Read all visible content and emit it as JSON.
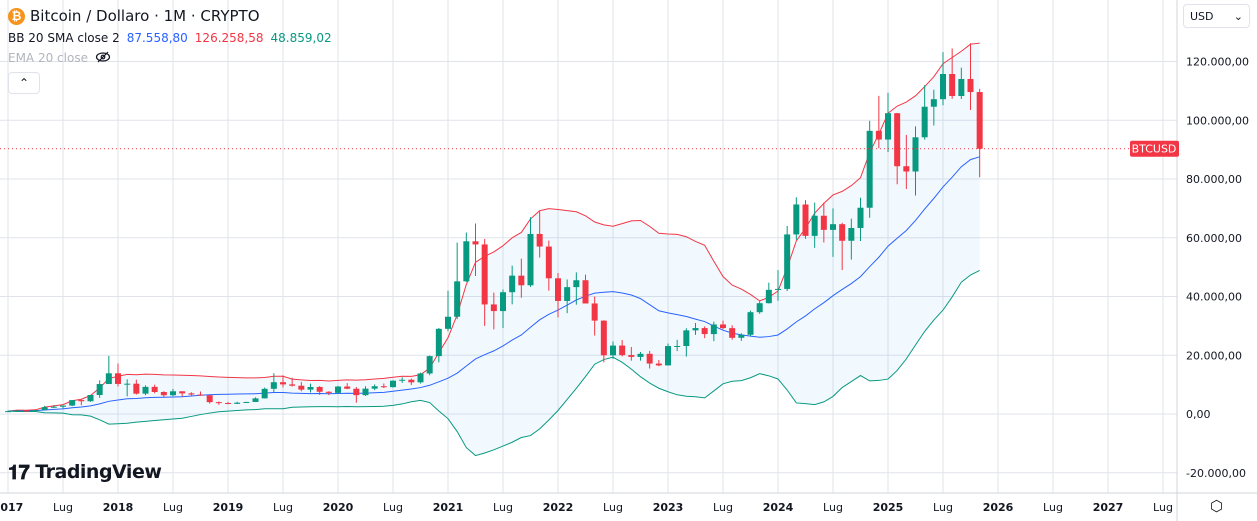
{
  "header": {
    "symbol_title": "Bitcoin / Dollaro · 1M · CRYPTO",
    "coin_icon": "bitcoin-icon",
    "bb_label": "BB 20 SMA close 2",
    "bb_basis": "87.558,80",
    "bb_upper": "126.258,58",
    "bb_lower": "48.859,02",
    "ema_label": "EMA 20 close",
    "ema_hidden_icon": "eye-off-icon",
    "collapse_icon": "chevron-up-icon"
  },
  "currency": {
    "label": "USD",
    "icon": "chevron-down-icon"
  },
  "price_label": "BTCUSD",
  "logo": "TradingView",
  "colors": {
    "up": "#089981",
    "down": "#f23645",
    "basis": "#2962ff",
    "upper": "#f23645",
    "lower": "#089981",
    "band_fill": "#2196f31a"
  },
  "chart_data": {
    "type": "candlestick",
    "interval": "1M",
    "start": "2017-01",
    "y_ticks": [
      "120.000,00",
      "100.000,00",
      "80.000,00",
      "60.000,00",
      "40.000,00",
      "20.000,00",
      "0,00",
      "-20.000,00"
    ],
    "y_tick_values": [
      120000,
      100000,
      80000,
      60000,
      40000,
      20000,
      0,
      -20000
    ],
    "x_ticks": [
      "2017",
      "Lug",
      "2018",
      "Lug",
      "2019",
      "Lug",
      "2020",
      "Lug",
      "2021",
      "Lug",
      "2022",
      "Lug",
      "2023",
      "Lug",
      "2024",
      "Lug",
      "2025",
      "Lug",
      "2026",
      "Lug",
      "2027",
      "Lug"
    ],
    "ylim": [
      -27000,
      141000
    ],
    "grid": true,
    "last_close": 90300,
    "indicator": "Bollinger Bands 20 SMA close 2",
    "ohlc": [
      [
        963,
        1190,
        750,
        970
      ],
      [
        970,
        1200,
        915,
        1190
      ],
      [
        1190,
        1350,
        890,
        1080
      ],
      [
        1080,
        1350,
        1060,
        1350
      ],
      [
        1350,
        2760,
        1350,
        2300
      ],
      [
        2300,
        3000,
        2100,
        2480
      ],
      [
        2480,
        2950,
        1830,
        2870
      ],
      [
        2870,
        4750,
        2670,
        4730
      ],
      [
        4730,
        5000,
        2970,
        4340
      ],
      [
        4340,
        6470,
        4110,
        6470
      ],
      [
        6470,
        11500,
        5500,
        10200
      ],
      [
        10200,
        19800,
        10400,
        13860
      ],
      [
        13860,
        17200,
        9400,
        10230
      ],
      [
        10230,
        11800,
        6000,
        10320
      ],
      [
        10320,
        11700,
        6600,
        6930
      ],
      [
        6930,
        9750,
        6430,
        9240
      ],
      [
        9240,
        9990,
        7050,
        7490
      ],
      [
        7490,
        7760,
        5760,
        6390
      ],
      [
        6390,
        8500,
        6070,
        7730
      ],
      [
        7730,
        7760,
        5880,
        7030
      ],
      [
        7030,
        7410,
        6100,
        6630
      ],
      [
        6630,
        7680,
        6200,
        6370
      ],
      [
        6370,
        6580,
        3560,
        4040
      ],
      [
        4040,
        4250,
        3130,
        3740
      ],
      [
        3740,
        4110,
        3350,
        3460
      ],
      [
        3460,
        4200,
        3400,
        3850
      ],
      [
        3850,
        4130,
        3730,
        4100
      ],
      [
        4100,
        5640,
        4100,
        5320
      ],
      [
        5320,
        9000,
        5320,
        8570
      ],
      [
        8570,
        13880,
        7450,
        10820
      ],
      [
        10820,
        13200,
        9060,
        10080
      ],
      [
        10080,
        12330,
        9340,
        9630
      ],
      [
        9630,
        10920,
        7730,
        8290
      ],
      [
        8290,
        10350,
        7300,
        9200
      ],
      [
        9200,
        9510,
        6510,
        7570
      ],
      [
        7570,
        7750,
        6430,
        7190
      ],
      [
        7190,
        9580,
        6870,
        9350
      ],
      [
        9350,
        10500,
        8470,
        8600
      ],
      [
        8600,
        9190,
        3850,
        6410
      ],
      [
        6410,
        9460,
        6160,
        8630
      ],
      [
        8630,
        10070,
        8120,
        9450
      ],
      [
        9450,
        10380,
        8830,
        9140
      ],
      [
        9140,
        11450,
        8980,
        11350
      ],
      [
        11350,
        12480,
        10580,
        11660
      ],
      [
        11660,
        12050,
        9880,
        10780
      ],
      [
        10780,
        14100,
        10380,
        13800
      ],
      [
        13800,
        19900,
        13200,
        19700
      ],
      [
        19700,
        29300,
        17600,
        28990
      ],
      [
        28990,
        41950,
        28130,
        33110
      ],
      [
        33110,
        58350,
        32300,
        45160
      ],
      [
        45160,
        61780,
        44950,
        58800
      ],
      [
        58800,
        64850,
        47000,
        57720
      ],
      [
        57720,
        59600,
        30000,
        37300
      ],
      [
        37300,
        41330,
        28800,
        35040
      ],
      [
        35040,
        42400,
        29280,
        41460
      ],
      [
        41460,
        50500,
        37330,
        47100
      ],
      [
        47100,
        52900,
        39600,
        43820
      ],
      [
        43820,
        67000,
        43290,
        61300
      ],
      [
        61300,
        69000,
        53250,
        57000
      ],
      [
        57000,
        59050,
        42000,
        46200
      ],
      [
        46200,
        47990,
        32900,
        38480
      ],
      [
        38480,
        45800,
        34320,
        43190
      ],
      [
        43190,
        48200,
        37200,
        45540
      ],
      [
        45540,
        47440,
        37700,
        37630
      ],
      [
        37630,
        40000,
        26700,
        31790
      ],
      [
        31790,
        31900,
        17600,
        19980
      ],
      [
        19980,
        24670,
        18780,
        23300
      ],
      [
        23300,
        25200,
        19600,
        20050
      ],
      [
        20050,
        22800,
        18150,
        19430
      ],
      [
        19430,
        21100,
        18190,
        20490
      ],
      [
        20490,
        21470,
        15480,
        17170
      ],
      [
        17170,
        18400,
        16260,
        16540
      ],
      [
        16540,
        23960,
        16500,
        23130
      ],
      [
        23130,
        25250,
        21400,
        23150
      ],
      [
        23150,
        29200,
        19550,
        28480
      ],
      [
        28480,
        31000,
        26940,
        29250
      ],
      [
        29250,
        29820,
        25810,
        27210
      ],
      [
        27210,
        31430,
        24800,
        30480
      ],
      [
        30480,
        31800,
        28860,
        29230
      ],
      [
        29230,
        30200,
        25300,
        25940
      ],
      [
        25940,
        27480,
        24900,
        26970
      ],
      [
        26970,
        35200,
        26560,
        34660
      ],
      [
        34660,
        38420,
        34100,
        37720
      ],
      [
        37720,
        44700,
        37620,
        42270
      ],
      [
        42270,
        48970,
        38550,
        42580
      ],
      [
        42580,
        64000,
        41880,
        61130
      ],
      [
        61130,
        73780,
        59300,
        71330
      ],
      [
        71330,
        72800,
        59600,
        60640
      ],
      [
        60640,
        71980,
        56550,
        67490
      ],
      [
        67490,
        71950,
        58400,
        62680
      ],
      [
        62680,
        70000,
        53500,
        64620
      ],
      [
        64620,
        65100,
        49000,
        58970
      ],
      [
        58970,
        66500,
        52550,
        63330
      ],
      [
        63330,
        73600,
        58900,
        70220
      ],
      [
        70220,
        99800,
        66800,
        96400
      ],
      [
        96400,
        108300,
        90500,
        93430
      ],
      [
        93430,
        109350,
        89200,
        102400
      ],
      [
        102400,
        102500,
        78200,
        84350
      ],
      [
        84350,
        95000,
        76600,
        82550
      ],
      [
        82550,
        97900,
        74400,
        94200
      ],
      [
        94200,
        111950,
        93400,
        104600
      ],
      [
        104600,
        110400,
        98200,
        107170
      ],
      [
        107170,
        123200,
        105100,
        115750
      ],
      [
        115750,
        124450,
        107300,
        108250
      ],
      [
        108250,
        117900,
        107250,
        114050
      ],
      [
        114050,
        126200,
        103500,
        109600
      ],
      [
        109600,
        110700,
        80600,
        90300
      ]
    ]
  }
}
